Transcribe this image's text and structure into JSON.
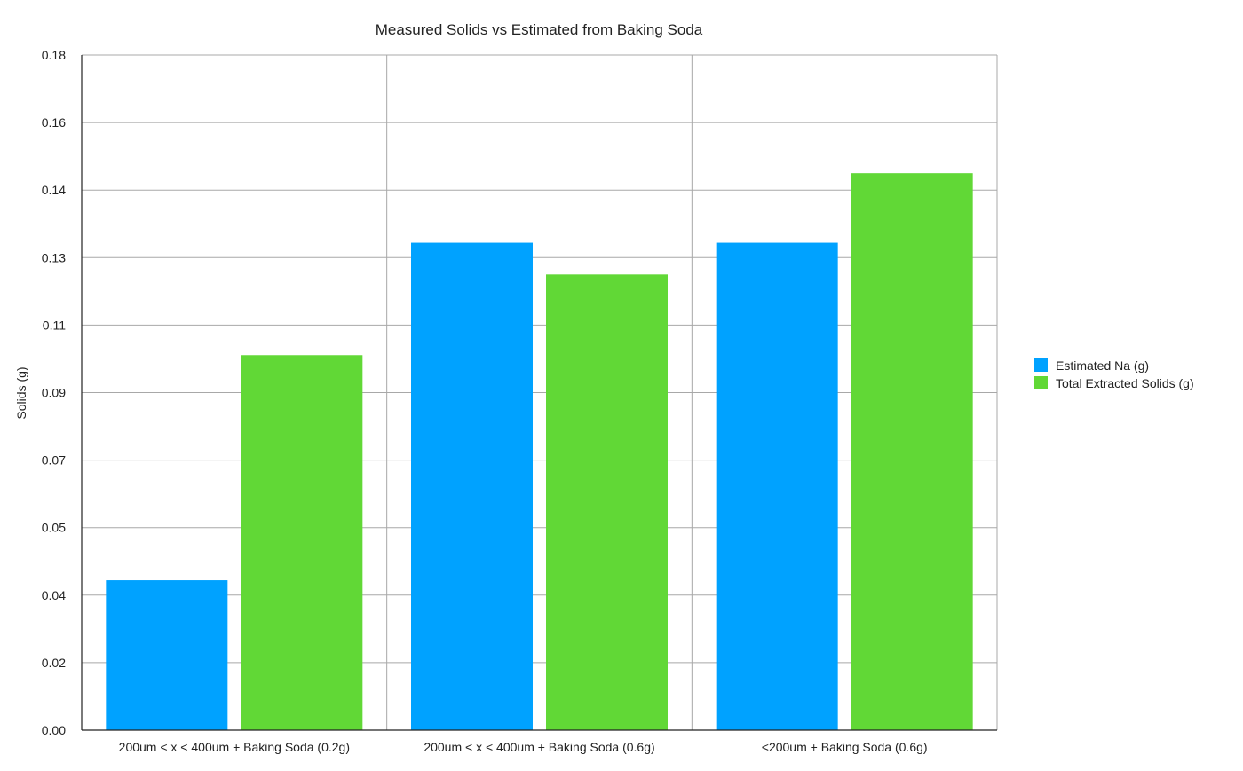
{
  "chart_data": {
    "type": "bar",
    "title": "Measured Solids vs Estimated from Baking Soda",
    "ylabel": "Solids (g)",
    "xlabel": "",
    "categories": [
      "200um < x < 400um + Baking Soda (0.2g)",
      "200um < x < 400um + Baking Soda (0.6g)",
      "<200um + Baking Soda (0.6g)"
    ],
    "series": [
      {
        "name": "Estimated Na (g)",
        "color": "#00a2ff",
        "values": [
          0.0444,
          0.1444,
          0.1444
        ]
      },
      {
        "name": "Total Extracted Solids (g)",
        "color": "#61d836",
        "values": [
          0.1111,
          0.135,
          0.165
        ]
      }
    ],
    "yticks": [
      "0.00",
      "0.02",
      "0.04",
      "0.05",
      "0.07",
      "0.09",
      "0.11",
      "0.13",
      "0.14",
      "0.16",
      "0.18"
    ],
    "ylim": [
      0,
      0.2
    ],
    "grid": true,
    "legend_position": "right"
  }
}
